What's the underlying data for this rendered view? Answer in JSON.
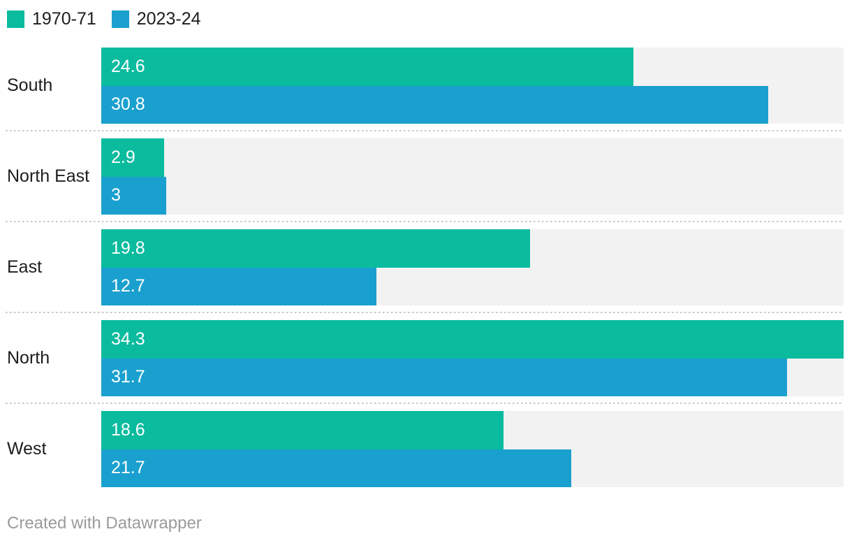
{
  "colors": {
    "series": [
      "#0abb9e",
      "#1aa0ce"
    ],
    "track": "#f2f2f2",
    "category_text": "#1d1d1d",
    "value_text": "#ffffff",
    "separator": "#c6c6c6",
    "footer_text": "#9b9b9b"
  },
  "legend": {
    "position": "top"
  },
  "chart_data": {
    "type": "bar",
    "orientation": "horizontal",
    "title": "",
    "xlabel": "",
    "ylabel": "",
    "categories": [
      "South",
      "North East",
      "East",
      "North",
      "West"
    ],
    "series": [
      {
        "name": "1970-71",
        "values": [
          24.6,
          2.9,
          19.8,
          34.3,
          18.6
        ]
      },
      {
        "name": "2023-24",
        "values": [
          30.8,
          3,
          12.7,
          31.7,
          21.7
        ]
      }
    ],
    "xlim": [
      0,
      34.3
    ],
    "grid": false,
    "legend_position": "top",
    "value_labels_inside_bars": true
  },
  "footer": {
    "text": "Created with Datawrapper"
  }
}
